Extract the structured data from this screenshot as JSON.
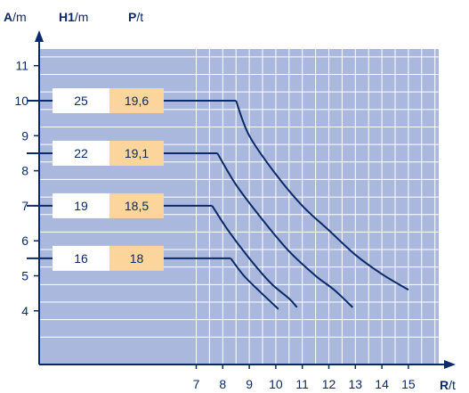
{
  "chart_data": {
    "type": "line",
    "header": {
      "a": {
        "sym": "A",
        "unit": "/m"
      },
      "h": {
        "sym": "H1",
        "unit": "/m"
      },
      "p": {
        "sym": "P",
        "unit": "/t"
      }
    },
    "xaxis": {
      "sym": "R",
      "unit": "/t",
      "ticks": [
        7,
        8,
        9,
        10,
        11,
        12,
        13,
        14,
        15
      ],
      "tick_labels": [
        "7",
        "8",
        "9",
        "10",
        "11",
        "12",
        "13",
        "14",
        "15"
      ]
    },
    "yaxis": {
      "ticks": [
        4,
        5,
        6,
        7,
        8,
        9,
        10,
        11
      ],
      "tick_labels": [
        "4",
        "5",
        "6",
        "7",
        "8",
        "9",
        "10",
        "11"
      ]
    },
    "series": [
      {
        "h1": "25",
        "p": "19,6",
        "a_level": 10,
        "points": [
          [
            8.5,
            10.0
          ],
          [
            9.0,
            9.0
          ],
          [
            10.0,
            7.9
          ],
          [
            11.0,
            7.0
          ],
          [
            12.0,
            6.3
          ],
          [
            13.0,
            5.6
          ],
          [
            14.0,
            5.05
          ],
          [
            15.0,
            4.6
          ]
        ]
      },
      {
        "h1": "22",
        "p": "19,1",
        "a_level": 8.5,
        "points": [
          [
            7.8,
            8.5
          ],
          [
            8.5,
            7.6
          ],
          [
            9.5,
            6.6
          ],
          [
            10.5,
            5.7
          ],
          [
            11.5,
            5.0
          ],
          [
            12.2,
            4.6
          ],
          [
            12.9,
            4.1
          ]
        ]
      },
      {
        "h1": "19",
        "p": "18,5",
        "a_level": 7,
        "points": [
          [
            7.6,
            7.0
          ],
          [
            8.2,
            6.3
          ],
          [
            9.0,
            5.5
          ],
          [
            9.8,
            4.8
          ],
          [
            10.5,
            4.35
          ],
          [
            10.8,
            4.1
          ]
        ]
      },
      {
        "h1": "16",
        "p": "18",
        "a_level": 5.5,
        "points": [
          [
            8.3,
            5.5
          ],
          [
            8.8,
            5.0
          ],
          [
            9.4,
            4.55
          ],
          [
            10.1,
            4.05
          ]
        ]
      }
    ],
    "colors": {
      "plot_bg": "#a9b8dc",
      "grid": "#ffffff",
      "line": "#0b2a6b",
      "h_box": "#ffffff",
      "p_box": "#fbd59b",
      "text": "#0b2a6b"
    }
  }
}
